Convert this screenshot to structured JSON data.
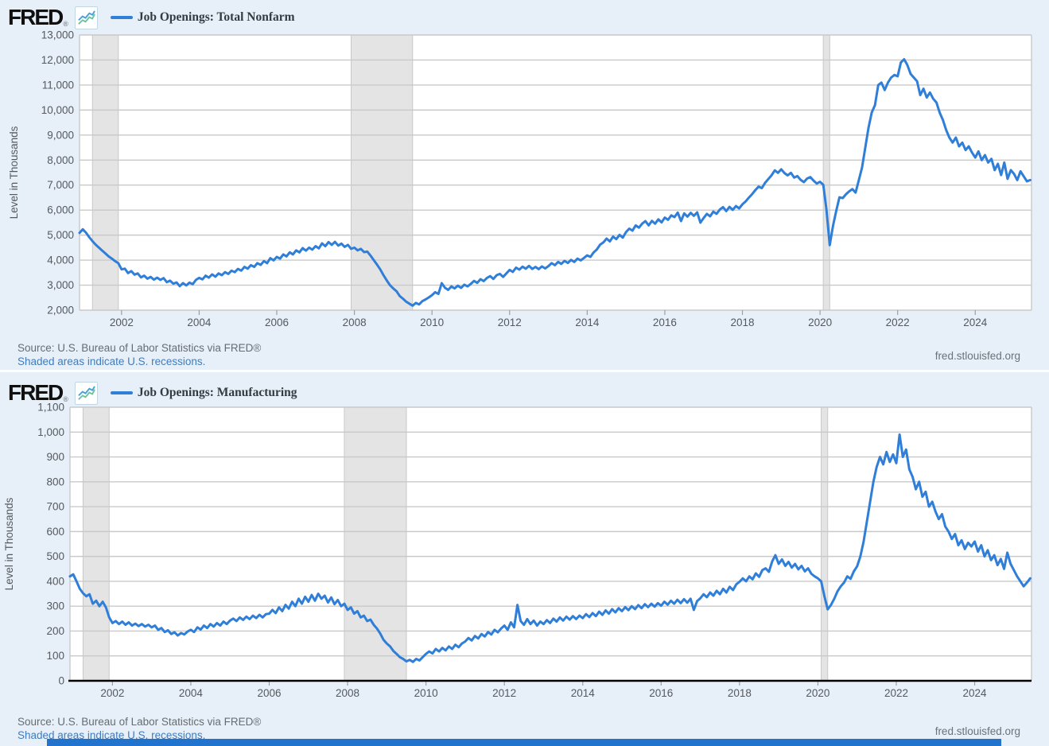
{
  "ui": {
    "logo_text": "FRED",
    "logo_registered": "®",
    "source": "Source: U.S. Bureau of Labor Statistics via FRED®",
    "recession_note": "Shaded areas indicate U.S. recessions.",
    "watermark": "fred.stlouisfed.org",
    "accent_blue": "#2f7ed8",
    "recession_band_color": "#e4e4e4",
    "grid_color": "#c9c9c9"
  },
  "chart_data": [
    {
      "type": "line",
      "title": "Job Openings: Total Nonfarm",
      "ylabel": "Level in Thousands",
      "xlabel": "",
      "ylim": [
        2000,
        13000
      ],
      "ytick_step": 1000,
      "xlim": [
        2000.9167,
        2025.45
      ],
      "xticks": [
        2002,
        2004,
        2006,
        2008,
        2010,
        2012,
        2014,
        2016,
        2018,
        2020,
        2022,
        2024
      ],
      "grid": true,
      "legend_position": "top",
      "zero_axis_black": false,
      "recession_bands": [
        [
          2001.25,
          2001.9167
        ],
        [
          2007.9167,
          2009.5
        ],
        [
          2020.0833,
          2020.25
        ]
      ],
      "x_start_decimal_year": 2000.9167,
      "points_per_year": 12,
      "series": [
        {
          "name": "Job Openings: Total Nonfarm",
          "color": "#2f7ed8",
          "values": [
            5088,
            5234,
            5100,
            4920,
            4760,
            4620,
            4500,
            4380,
            4270,
            4150,
            4060,
            3960,
            3880,
            3630,
            3660,
            3480,
            3560,
            3420,
            3470,
            3310,
            3380,
            3260,
            3330,
            3220,
            3300,
            3210,
            3280,
            3120,
            3180,
            3060,
            3110,
            2960,
            3080,
            2990,
            3100,
            3040,
            3210,
            3290,
            3230,
            3380,
            3300,
            3430,
            3340,
            3470,
            3400,
            3520,
            3450,
            3580,
            3520,
            3650,
            3580,
            3730,
            3660,
            3800,
            3730,
            3880,
            3810,
            3960,
            3880,
            4080,
            3990,
            4130,
            4060,
            4230,
            4150,
            4310,
            4230,
            4390,
            4310,
            4480,
            4380,
            4500,
            4420,
            4560,
            4470,
            4670,
            4560,
            4720,
            4610,
            4730,
            4580,
            4660,
            4530,
            4610,
            4450,
            4500,
            4390,
            4450,
            4320,
            4340,
            4180,
            4000,
            3820,
            3630,
            3400,
            3190,
            3000,
            2870,
            2760,
            2570,
            2460,
            2340,
            2260,
            2180,
            2290,
            2230,
            2360,
            2430,
            2510,
            2600,
            2720,
            2650,
            3080,
            2900,
            2810,
            2950,
            2870,
            2980,
            2890,
            3020,
            2950,
            3050,
            3170,
            3090,
            3240,
            3160,
            3290,
            3360,
            3250,
            3400,
            3450,
            3330,
            3470,
            3610,
            3530,
            3700,
            3620,
            3740,
            3660,
            3770,
            3650,
            3730,
            3640,
            3750,
            3670,
            3760,
            3880,
            3800,
            3930,
            3850,
            3970,
            3890,
            4010,
            3930,
            4060,
            3990,
            4090,
            4190,
            4130,
            4310,
            4430,
            4620,
            4710,
            4860,
            4750,
            4940,
            4840,
            5010,
            4900,
            5120,
            5260,
            5180,
            5390,
            5300,
            5460,
            5560,
            5390,
            5570,
            5460,
            5630,
            5510,
            5700,
            5610,
            5790,
            5720,
            5900,
            5560,
            5870,
            5740,
            5890,
            5770,
            5910,
            5500,
            5680,
            5850,
            5750,
            5940,
            5850,
            6020,
            6120,
            5960,
            6130,
            6010,
            6160,
            6070,
            6230,
            6350,
            6500,
            6640,
            6800,
            6940,
            6880,
            7090,
            7240,
            7390,
            7590,
            7490,
            7630,
            7480,
            7390,
            7490,
            7300,
            7360,
            7210,
            7120,
            7260,
            7320,
            7180,
            7060,
            7130,
            7010,
            6010,
            4600,
            5370,
            5960,
            6510,
            6480,
            6630,
            6750,
            6840,
            6700,
            7200,
            7700,
            8500,
            9300,
            9900,
            10200,
            11000,
            11100,
            10800,
            11100,
            11300,
            11400,
            11350,
            11900,
            12030,
            11800,
            11450,
            11300,
            11150,
            10600,
            10850,
            10500,
            10700,
            10450,
            10300,
            9900,
            9600,
            9200,
            8900,
            8700,
            8900,
            8550,
            8700,
            8400,
            8550,
            8300,
            8100,
            8350,
            8000,
            8200,
            7900,
            8050,
            7600,
            7850,
            7400,
            7900,
            7250,
            7600,
            7450,
            7200,
            7550,
            7350,
            7150,
            7200
          ]
        }
      ]
    },
    {
      "type": "line",
      "title": "Job Openings: Manufacturing",
      "ylabel": "Level in Thousands",
      "xlabel": "",
      "ylim": [
        0,
        1100
      ],
      "ytick_step": 100,
      "xlim": [
        2000.9167,
        2025.45
      ],
      "xticks": [
        2002,
        2004,
        2006,
        2008,
        2010,
        2012,
        2014,
        2016,
        2018,
        2020,
        2022,
        2024
      ],
      "grid": true,
      "legend_position": "top",
      "zero_axis_black": true,
      "recession_bands": [
        [
          2001.25,
          2001.9167
        ],
        [
          2007.9167,
          2009.5
        ],
        [
          2020.0833,
          2020.25
        ]
      ],
      "x_start_decimal_year": 2000.9167,
      "points_per_year": 12,
      "series": [
        {
          "name": "Job Openings: Manufacturing",
          "color": "#2f7ed8",
          "values": [
            420,
            428,
            400,
            370,
            352,
            340,
            348,
            310,
            322,
            300,
            318,
            295,
            255,
            232,
            240,
            228,
            238,
            225,
            235,
            222,
            230,
            220,
            228,
            218,
            225,
            215,
            222,
            205,
            212,
            196,
            203,
            188,
            195,
            182,
            192,
            186,
            198,
            205,
            196,
            215,
            206,
            222,
            212,
            228,
            218,
            232,
            222,
            238,
            228,
            242,
            250,
            240,
            255,
            245,
            258,
            248,
            262,
            252,
            265,
            255,
            268,
            270,
            285,
            272,
            295,
            280,
            305,
            290,
            318,
            300,
            330,
            310,
            338,
            318,
            345,
            322,
            350,
            330,
            342,
            315,
            335,
            308,
            325,
            300,
            310,
            285,
            295,
            270,
            280,
            255,
            262,
            240,
            246,
            225,
            210,
            190,
            165,
            150,
            138,
            120,
            108,
            95,
            88,
            78,
            84,
            76,
            88,
            82,
            95,
            108,
            118,
            110,
            128,
            118,
            132,
            122,
            138,
            128,
            145,
            135,
            150,
            158,
            172,
            162,
            180,
            170,
            188,
            178,
            196,
            186,
            205,
            195,
            210,
            222,
            205,
            235,
            215,
            305,
            240,
            225,
            248,
            228,
            242,
            222,
            238,
            228,
            244,
            232,
            250,
            238,
            255,
            242,
            258,
            246,
            260,
            248,
            262,
            252,
            268,
            256,
            272,
            260,
            278,
            265,
            283,
            270,
            288,
            275,
            292,
            280,
            296,
            284,
            300,
            288,
            304,
            292,
            308,
            296,
            310,
            298,
            312,
            302,
            318,
            306,
            322,
            310,
            326,
            312,
            328,
            314,
            330,
            285,
            320,
            332,
            348,
            336,
            355,
            342,
            362,
            348,
            370,
            355,
            378,
            365,
            388,
            398,
            412,
            400,
            420,
            408,
            432,
            418,
            445,
            452,
            438,
            480,
            505,
            470,
            488,
            462,
            478,
            455,
            470,
            448,
            462,
            440,
            452,
            430,
            420,
            412,
            400,
            340,
            287,
            305,
            330,
            360,
            380,
            395,
            420,
            410,
            440,
            460,
            500,
            560,
            640,
            720,
            800,
            860,
            900,
            870,
            920,
            880,
            910,
            875,
            990,
            900,
            930,
            850,
            820,
            770,
            800,
            740,
            760,
            700,
            720,
            680,
            650,
            670,
            620,
            600,
            570,
            590,
            545,
            565,
            530,
            555,
            540,
            560,
            520,
            545,
            500,
            525,
            485,
            505,
            465,
            490,
            450,
            515,
            470,
            445,
            420,
            400,
            380,
            395,
            412
          ]
        }
      ]
    }
  ]
}
